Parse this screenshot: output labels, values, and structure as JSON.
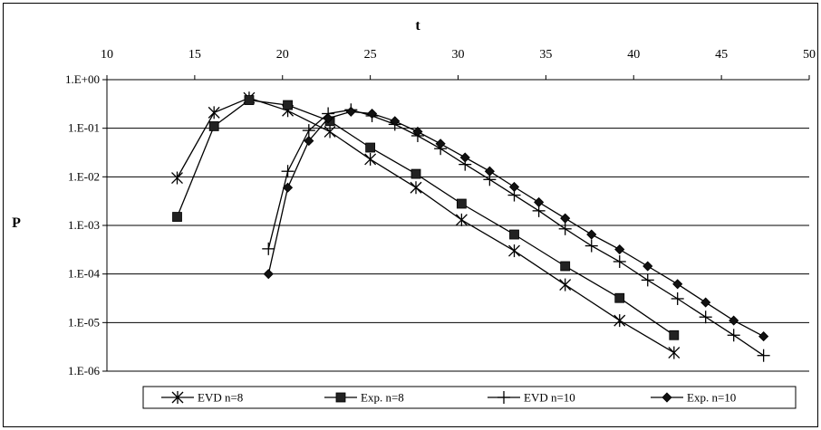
{
  "chart_data": {
    "type": "line",
    "xlabel": "t",
    "ylabel": "P",
    "x_axis_position": "top",
    "xlim": [
      10,
      50
    ],
    "x_ticks": [
      10,
      15,
      20,
      25,
      30,
      35,
      40,
      45,
      50
    ],
    "y_scale": "log",
    "ylim": [
      1e-06,
      1
    ],
    "y_ticks": [
      1,
      0.1,
      0.01,
      0.001,
      0.0001,
      1e-05,
      1e-06
    ],
    "y_tick_labels": [
      "1.E+00",
      "1.E-01",
      "1.E-02",
      "1.E-03",
      "1.E-04",
      "1.E-05",
      "1.E-06"
    ],
    "grid": "horizontal",
    "legend_position": "bottom",
    "series": [
      {
        "name": "EVD n=8",
        "marker": "asterisk",
        "points": [
          [
            14.0,
            0.0095
          ],
          [
            16.1,
            0.21
          ],
          [
            18.1,
            0.42
          ],
          [
            20.3,
            0.23
          ],
          [
            22.7,
            0.085
          ],
          [
            25.0,
            0.023
          ],
          [
            27.6,
            0.006
          ],
          [
            30.2,
            0.0013
          ],
          [
            33.2,
            0.0003
          ],
          [
            36.1,
            6e-05
          ],
          [
            39.2,
            1.1e-05
          ],
          [
            42.3,
            2.4e-06
          ]
        ]
      },
      {
        "name": "Exp. n=8",
        "marker": "square",
        "points": [
          [
            14.0,
            0.0015
          ],
          [
            16.1,
            0.11
          ],
          [
            18.1,
            0.38
          ],
          [
            20.3,
            0.3
          ],
          [
            22.7,
            0.14
          ],
          [
            25.0,
            0.04
          ],
          [
            27.6,
            0.0115
          ],
          [
            30.2,
            0.0028
          ],
          [
            33.2,
            0.00065
          ],
          [
            36.1,
            0.000145
          ],
          [
            39.2,
            3.2e-05
          ],
          [
            42.3,
            5.5e-06
          ]
        ]
      },
      {
        "name": "EVD n=10",
        "marker": "plus",
        "points": [
          [
            19.2,
            0.00033
          ],
          [
            20.3,
            0.013
          ],
          [
            21.5,
            0.09
          ],
          [
            22.6,
            0.2
          ],
          [
            23.9,
            0.24
          ],
          [
            25.1,
            0.18
          ],
          [
            26.4,
            0.12
          ],
          [
            27.7,
            0.07
          ],
          [
            29.0,
            0.038
          ],
          [
            30.4,
            0.018
          ],
          [
            31.8,
            0.0088
          ],
          [
            33.2,
            0.0042
          ],
          [
            34.6,
            0.002
          ],
          [
            36.1,
            0.00085
          ],
          [
            37.6,
            0.00038
          ],
          [
            39.2,
            0.00018
          ],
          [
            40.8,
            7.5e-05
          ],
          [
            42.5,
            3.1e-05
          ],
          [
            44.1,
            1.3e-05
          ],
          [
            45.7,
            5.5e-06
          ],
          [
            47.4,
            2.1e-06
          ]
        ]
      },
      {
        "name": "Exp. n=10",
        "marker": "diamond",
        "points": [
          [
            19.2,
            0.0001
          ],
          [
            20.3,
            0.006
          ],
          [
            21.5,
            0.055
          ],
          [
            22.6,
            0.16
          ],
          [
            23.9,
            0.22
          ],
          [
            25.1,
            0.2
          ],
          [
            26.4,
            0.14
          ],
          [
            27.7,
            0.085
          ],
          [
            29.0,
            0.048
          ],
          [
            30.4,
            0.025
          ],
          [
            31.8,
            0.013
          ],
          [
            33.2,
            0.0062
          ],
          [
            34.6,
            0.003
          ],
          [
            36.1,
            0.0014
          ],
          [
            37.6,
            0.00065
          ],
          [
            39.2,
            0.00032
          ],
          [
            40.8,
            0.000145
          ],
          [
            42.5,
            6.2e-05
          ],
          [
            44.1,
            2.6e-05
          ],
          [
            45.7,
            1.1e-05
          ],
          [
            47.4,
            5.2e-06
          ]
        ]
      }
    ]
  }
}
